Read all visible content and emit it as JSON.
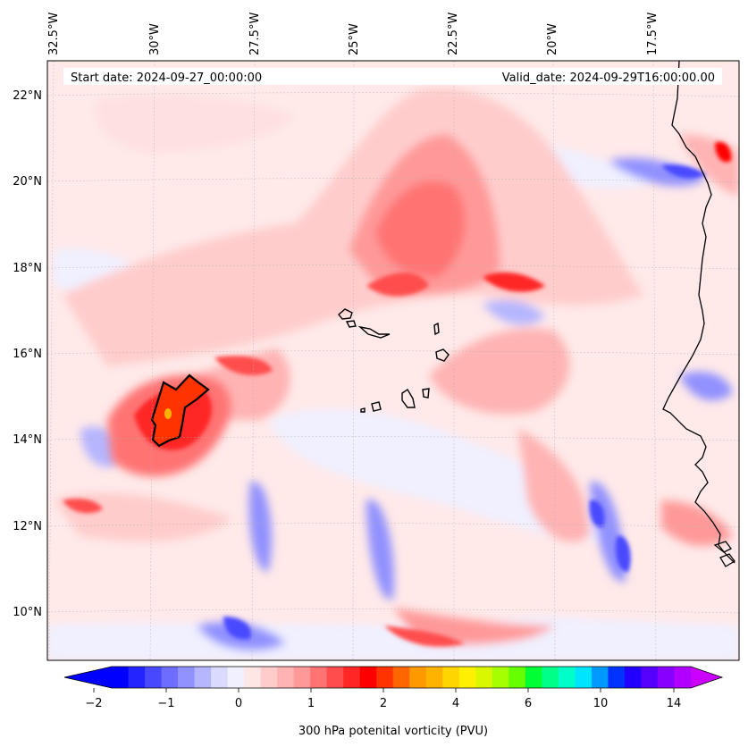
{
  "map": {
    "start_date": "Start date: 2024-09-27_00:00:00",
    "valid_date": "Valid_date: 2024-09-29T16:00:00.00",
    "lon_labels": [
      "32.5°W",
      "30°W",
      "27.5°W",
      "25°W",
      "22.5°W",
      "20°W",
      "17.5°W"
    ],
    "lat_labels": [
      "22°N",
      "20°N",
      "18°N",
      "16°N",
      "14°N",
      "12°N",
      "10°N"
    ],
    "colorbar": {
      "label": "300 hPa potenital vorticity (PVU)",
      "tick_labels": [
        "−2",
        "−1",
        "0",
        "1",
        "2",
        "4",
        "6",
        "10",
        "14"
      ],
      "colors": [
        "#0000ff",
        "#2424ff",
        "#4848ff",
        "#6d6dff",
        "#9191ff",
        "#b6b6ff",
        "#dadaff",
        "#f0f0ff",
        "#ffe6e6",
        "#ffcccc",
        "#ffb3b3",
        "#ff9999",
        "#ff7373",
        "#ff4d4d",
        "#ff2626",
        "#ff0000",
        "#ff3300",
        "#ff6600",
        "#ff9900",
        "#ffb300",
        "#ffd500",
        "#ffef00",
        "#d9f700",
        "#a6ff00",
        "#66ff00",
        "#00ff33",
        "#00ff88",
        "#00ffc8",
        "#00e5ff",
        "#0099ff",
        "#0033ff",
        "#2200ff",
        "#5500ff",
        "#8800ff",
        "#b000ff"
      ],
      "extend_low": "#0000ff",
      "extend_high": "#cc00ff"
    },
    "colors": {
      "ocean_base": "#ffe9e9",
      "land_edge": "#000000",
      "contour": "#000000"
    }
  }
}
